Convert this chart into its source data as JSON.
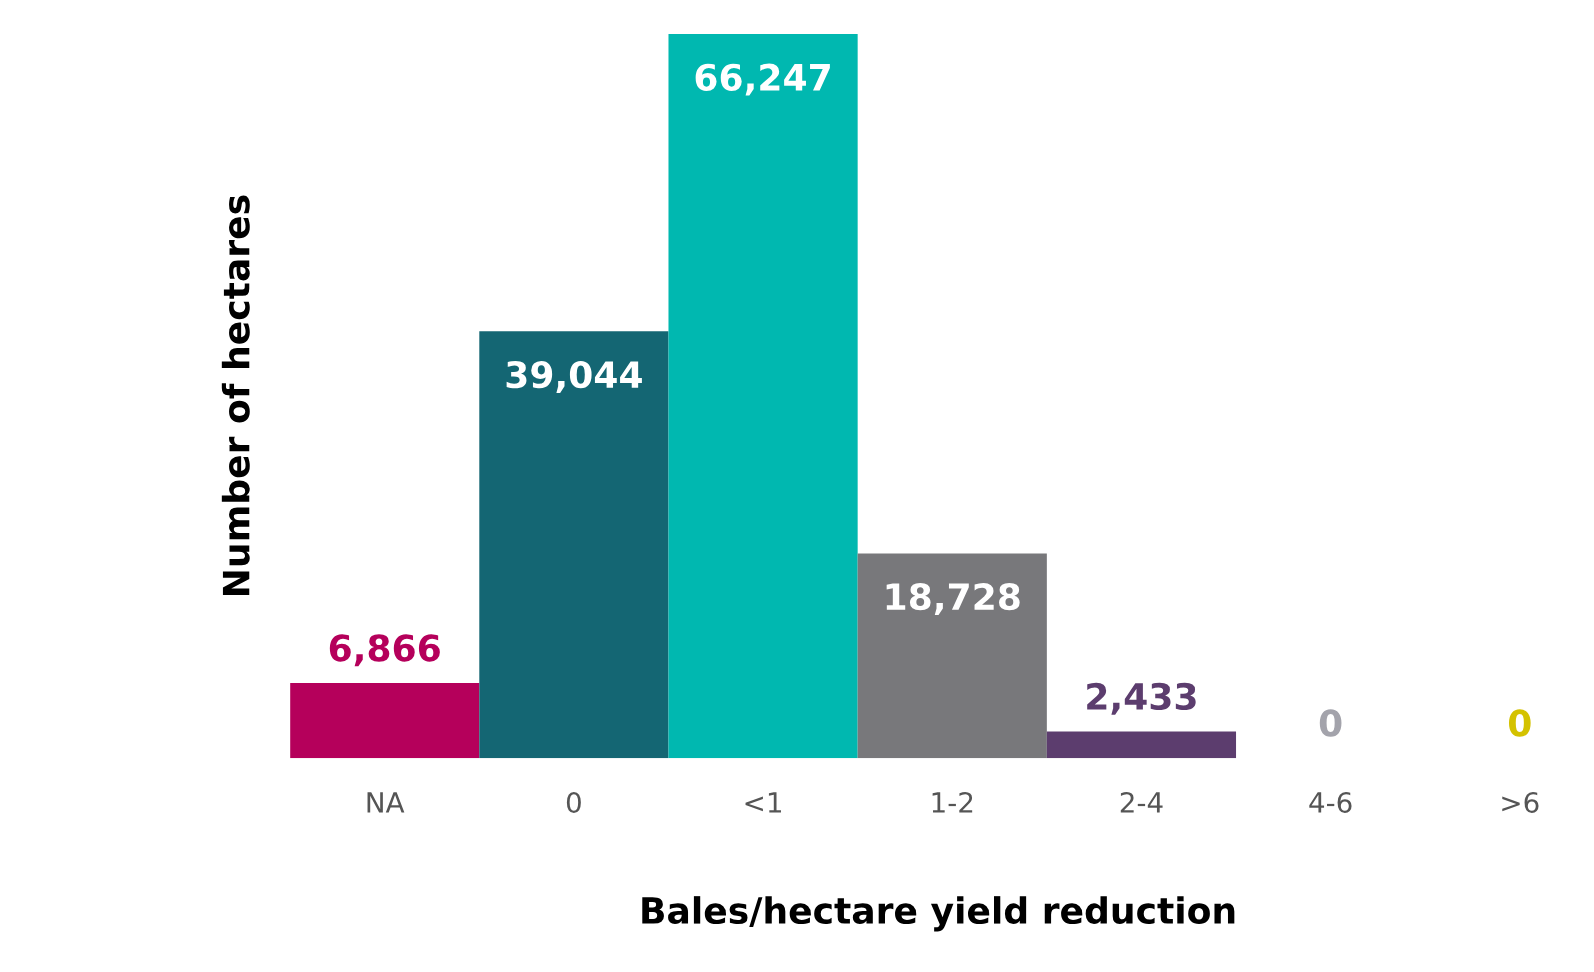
{
  "chart_data": {
    "type": "bar",
    "xlabel": "Bales/hectare yield reduction",
    "ylabel": "Number of hectares",
    "categories": [
      "NA",
      "0",
      "<1",
      "1-2",
      "2-4",
      "4-6",
      ">6"
    ],
    "values": [
      6866,
      39044,
      66247,
      18728,
      2433,
      0,
      0
    ],
    "colors": [
      "#b5005b",
      "#146673",
      "#00b8b0",
      "#78787b",
      "#5c3d6e",
      "#a3a3ab",
      "#d4c200"
    ],
    "data_labels": true,
    "value_labels": [
      "6,866",
      "39,044",
      "66,247",
      "18,728",
      "2,433",
      "0",
      "0"
    ],
    "grid": false,
    "legend": false
  }
}
